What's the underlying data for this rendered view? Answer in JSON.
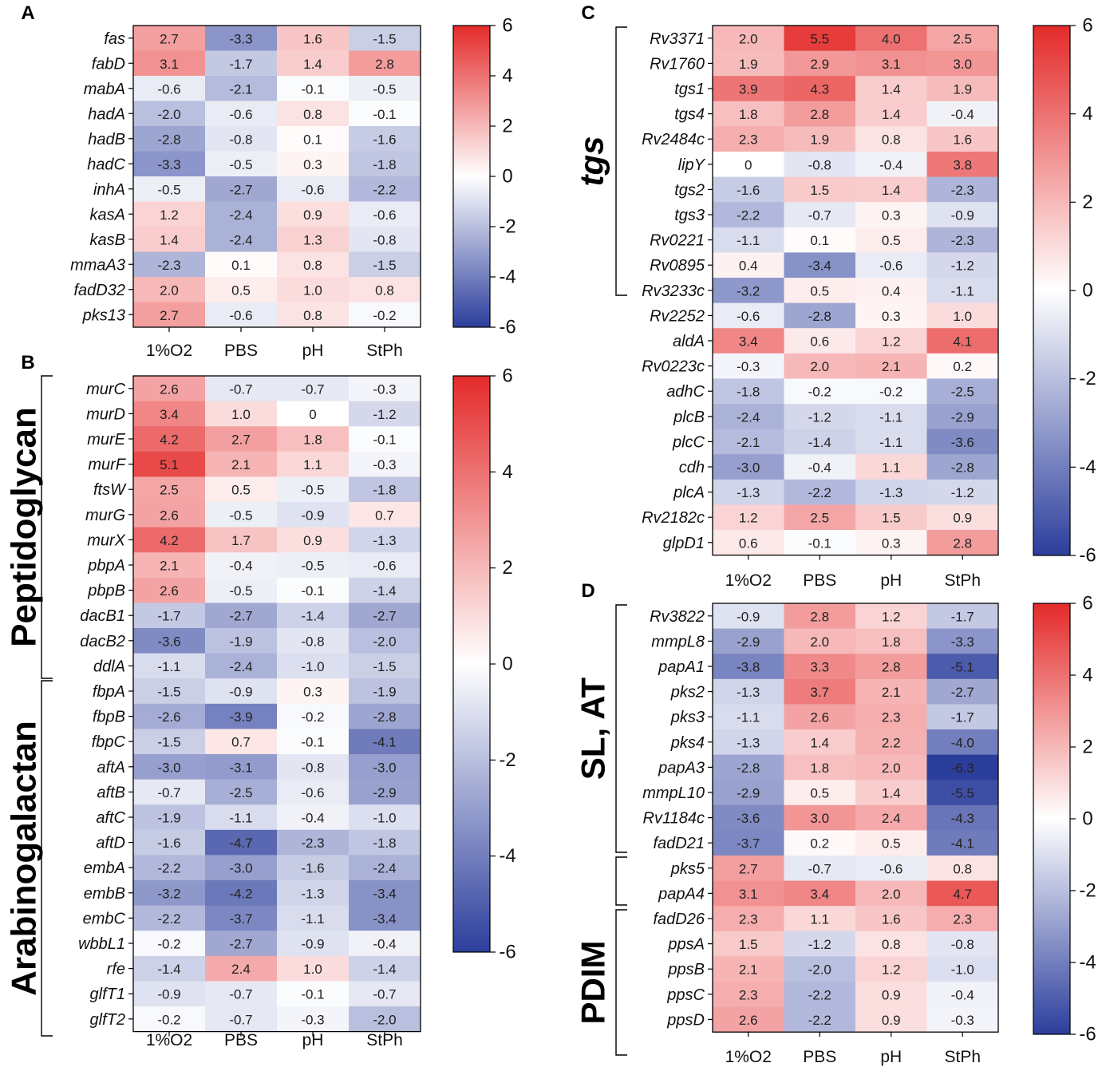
{
  "figure": {
    "colorscale": {
      "min": -6,
      "max": 6,
      "low_color": "#2c3e9c",
      "mid_color": "#ffffff",
      "high_color": "#e42a2a"
    }
  },
  "chart_data": [
    {
      "panel": "A",
      "type": "heatmap",
      "columns": [
        "1%O2",
        "PBS",
        "pH",
        "StPh"
      ],
      "rows": [
        "fas",
        "fabD",
        "mabA",
        "hadA",
        "hadB",
        "hadC",
        "inhA",
        "kasA",
        "kasB",
        "mmaA3",
        "fadD32",
        "pks13"
      ],
      "values": [
        [
          2.7,
          -3.3,
          1.6,
          -1.5
        ],
        [
          3.1,
          -1.7,
          1.4,
          2.8
        ],
        [
          -0.6,
          -2.1,
          -0.1,
          -0.5
        ],
        [
          -2.0,
          -0.6,
          0.8,
          -0.1
        ],
        [
          -2.8,
          -0.8,
          0.1,
          -1.6
        ],
        [
          -3.3,
          -0.5,
          0.3,
          -1.8
        ],
        [
          -0.5,
          -2.7,
          -0.6,
          -2.2
        ],
        [
          1.2,
          -2.4,
          0.9,
          -0.6
        ],
        [
          1.4,
          -2.4,
          1.3,
          -0.8
        ],
        [
          -2.3,
          0.1,
          0.8,
          -1.5
        ],
        [
          2.0,
          0.5,
          1.0,
          0.8
        ],
        [
          2.7,
          -0.6,
          0.8,
          -0.2
        ]
      ],
      "value_labels": [
        [
          "2.7",
          "-3.3",
          "1.6",
          "-1.5"
        ],
        [
          "3.1",
          "-1.7",
          "1.4",
          "2.8"
        ],
        [
          "-0.6",
          "-2.1",
          "-0.1",
          "-0.5"
        ],
        [
          "-2.0",
          "-0.6",
          "0.8",
          "-0.1"
        ],
        [
          "-2.8",
          "-0.8",
          "0.1",
          "-1.6"
        ],
        [
          "-3.3",
          "-0.5",
          "0.3",
          "-1.8"
        ],
        [
          "-0.5",
          "-2.7",
          "-0.6",
          "-2.2"
        ],
        [
          "1.2",
          "-2.4",
          "0.9",
          "-0.6"
        ],
        [
          "1.4",
          "-2.4",
          "1.3",
          "-0.8"
        ],
        [
          "-2.3",
          "0.1",
          "0.8",
          "-1.5"
        ],
        [
          "2.0",
          "0.5",
          "1.0",
          "0.8"
        ],
        [
          "2.7",
          "-0.6",
          "0.8",
          "-0.2"
        ]
      ],
      "groups": [],
      "colorbar_ticks": [
        "6",
        "4",
        "2",
        "0",
        "-2",
        "-4",
        "-6"
      ]
    },
    {
      "panel": "B",
      "type": "heatmap",
      "columns": [
        "1%O2",
        "PBS",
        "pH",
        "StPh"
      ],
      "rows": [
        "murC",
        "murD",
        "murE",
        "murF",
        "ftsW",
        "murG",
        "murX",
        "pbpA",
        "pbpB",
        "dacB1",
        "dacB2",
        "ddlA",
        "fbpA",
        "fbpB",
        "fbpC",
        "aftA",
        "aftB",
        "aftC",
        "aftD",
        "embA",
        "embB",
        "embC",
        "wbbL1",
        "rfe",
        "glfT1",
        "glfT2"
      ],
      "values": [
        [
          2.6,
          -0.7,
          -0.7,
          -0.3
        ],
        [
          3.4,
          1.0,
          0,
          -1.2
        ],
        [
          4.2,
          2.7,
          1.8,
          -0.1
        ],
        [
          5.1,
          2.1,
          1.1,
          -0.3
        ],
        [
          2.5,
          0.5,
          -0.5,
          -1.8
        ],
        [
          2.6,
          -0.5,
          -0.9,
          0.7
        ],
        [
          4.2,
          1.7,
          0.9,
          -1.3
        ],
        [
          2.1,
          -0.4,
          -0.5,
          -0.6
        ],
        [
          2.6,
          -0.5,
          -0.1,
          -1.4
        ],
        [
          -1.7,
          -2.7,
          -1.4,
          -2.7
        ],
        [
          -3.6,
          -1.9,
          -0.8,
          -2.0
        ],
        [
          -1.1,
          -2.4,
          -1.0,
          -1.5
        ],
        [
          -1.5,
          -0.9,
          0.3,
          -1.9
        ],
        [
          -2.6,
          -3.9,
          -0.2,
          -2.8
        ],
        [
          -1.5,
          0.7,
          -0.1,
          -4.1
        ],
        [
          -3.0,
          -3.1,
          -0.8,
          -3.0
        ],
        [
          -0.7,
          -2.5,
          -0.6,
          -2.9
        ],
        [
          -1.9,
          -1.1,
          -0.4,
          -1.0
        ],
        [
          -1.6,
          -4.7,
          -2.3,
          -1.8
        ],
        [
          -2.2,
          -3.0,
          -1.6,
          -2.4
        ],
        [
          -3.2,
          -4.2,
          -1.3,
          -3.4
        ],
        [
          -2.2,
          -3.7,
          -1.1,
          -3.4
        ],
        [
          -0.2,
          -2.7,
          -0.9,
          -0.4
        ],
        [
          -1.4,
          2.4,
          1.0,
          -1.4
        ],
        [
          -0.9,
          -0.7,
          -0.1,
          -0.7
        ],
        [
          -0.2,
          -0.7,
          -0.3,
          -2.0
        ]
      ],
      "value_labels": [
        [
          "2.6",
          "-0.7",
          "-0.7",
          "-0.3"
        ],
        [
          "3.4",
          "1.0",
          "0",
          "-1.2"
        ],
        [
          "4.2",
          "2.7",
          "1.8",
          "-0.1"
        ],
        [
          "5.1",
          "2.1",
          "1.1",
          "-0.3"
        ],
        [
          "2.5",
          "0.5",
          "-0.5",
          "-1.8"
        ],
        [
          "2.6",
          "-0.5",
          "-0.9",
          "0.7"
        ],
        [
          "4.2",
          "1.7",
          "0.9",
          "-1.3"
        ],
        [
          "2.1",
          "-0.4",
          "-0.5",
          "-0.6"
        ],
        [
          "2.6",
          "-0.5",
          "-0.1",
          "-1.4"
        ],
        [
          "-1.7",
          "-2.7",
          "-1.4",
          "-2.7"
        ],
        [
          "-3.6",
          "-1.9",
          "-0.8",
          "-2.0"
        ],
        [
          "-1.1",
          "-2.4",
          "-1.0",
          "-1.5"
        ],
        [
          "-1.5",
          "-0.9",
          "0.3",
          "-1.9"
        ],
        [
          "-2.6",
          "-3.9",
          "-0.2",
          "-2.8"
        ],
        [
          "-1.5",
          "0.7",
          "-0.1",
          "-4.1"
        ],
        [
          "-3.0",
          "-3.1",
          "-0.8",
          "-3.0"
        ],
        [
          "-0.7",
          "-2.5",
          "-0.6",
          "-2.9"
        ],
        [
          "-1.9",
          "-1.1",
          "-0.4",
          "-1.0"
        ],
        [
          "-1.6",
          "-4.7",
          "-2.3",
          "-1.8"
        ],
        [
          "-2.2",
          "-3.0",
          "-1.6",
          "-2.4"
        ],
        [
          "-3.2",
          "-4.2",
          "-1.3",
          "-3.4"
        ],
        [
          "-2.2",
          "-3.7",
          "-1.1",
          "-3.4"
        ],
        [
          "-0.2",
          "-2.7",
          "-0.9",
          "-0.4"
        ],
        [
          "-1.4",
          "2.4",
          "1.0",
          "-1.4"
        ],
        [
          "-0.9",
          "-0.7",
          "-0.1",
          "-0.7"
        ],
        [
          "-0.2",
          "-0.7",
          "-0.3",
          "-2.0"
        ]
      ],
      "groups": [
        {
          "label": "Peptidoglycan",
          "first_row": 0,
          "last_row": 11
        },
        {
          "label": "Arabinogalactan",
          "first_row": 12,
          "last_row": 25
        }
      ],
      "colorbar_ticks": [
        "6",
        "4",
        "2",
        "0",
        "-2",
        "-4",
        "-6"
      ]
    },
    {
      "panel": "C",
      "type": "heatmap",
      "columns": [
        "1%O2",
        "PBS",
        "pH",
        "StPh"
      ],
      "rows": [
        "Rv3371",
        "Rv1760",
        "tgs1",
        "tgs4",
        "Rv2484c",
        "lipY",
        "tgs2",
        "tgs3",
        "Rv0221",
        "Rv0895",
        "Rv3233c",
        "Rv2252",
        "aldA",
        "Rv0223c",
        "adhC",
        "plcB",
        "plcC",
        "cdh",
        "plcA",
        "Rv2182c",
        "glpD1"
      ],
      "values": [
        [
          2.0,
          5.5,
          4.0,
          2.5
        ],
        [
          1.9,
          2.9,
          3.1,
          3.0
        ],
        [
          3.9,
          4.3,
          1.4,
          1.9
        ],
        [
          1.8,
          2.8,
          1.4,
          -0.4
        ],
        [
          2.3,
          1.9,
          0.8,
          1.6
        ],
        [
          0,
          -0.8,
          -0.4,
          3.8
        ],
        [
          -1.6,
          1.5,
          1.4,
          -2.3
        ],
        [
          -2.2,
          -0.7,
          0.3,
          -0.9
        ],
        [
          -1.1,
          0.1,
          0.5,
          -2.3
        ],
        [
          0.4,
          -3.4,
          -0.6,
          -1.2
        ],
        [
          -3.2,
          0.5,
          0.4,
          -1.1
        ],
        [
          -0.6,
          -2.8,
          0.3,
          1.0
        ],
        [
          3.4,
          0.6,
          1.2,
          4.1
        ],
        [
          -0.3,
          2.0,
          2.1,
          0.2
        ],
        [
          -1.8,
          -0.2,
          -0.2,
          -2.5
        ],
        [
          -2.4,
          -1.2,
          -1.1,
          -2.9
        ],
        [
          -2.1,
          -1.4,
          -1.1,
          -3.6
        ],
        [
          -3.0,
          -0.4,
          1.1,
          -2.8
        ],
        [
          -1.3,
          -2.2,
          -1.3,
          -1.2
        ],
        [
          1.2,
          2.5,
          1.5,
          0.9
        ],
        [
          0.6,
          -0.1,
          0.3,
          2.8
        ]
      ],
      "value_labels": [
        [
          "2.0",
          "5.5",
          "4.0",
          "2.5"
        ],
        [
          "1.9",
          "2.9",
          "3.1",
          "3.0"
        ],
        [
          "3.9",
          "4.3",
          "1.4",
          "1.9"
        ],
        [
          "1.8",
          "2.8",
          "1.4",
          "-0.4"
        ],
        [
          "2.3",
          "1.9",
          "0.8",
          "1.6"
        ],
        [
          "0",
          "-0.8",
          "-0.4",
          "3.8"
        ],
        [
          "-1.6",
          "1.5",
          "1.4",
          "-2.3"
        ],
        [
          "-2.2",
          "-0.7",
          "0.3",
          "-0.9"
        ],
        [
          "-1.1",
          "0.1",
          "0.5",
          "-2.3"
        ],
        [
          "0.4",
          "-3.4",
          "-0.6",
          "-1.2"
        ],
        [
          "-3.2",
          "0.5",
          "0.4",
          "-1.1"
        ],
        [
          "-0.6",
          "-2.8",
          "0.3",
          "1.0"
        ],
        [
          "3.4",
          "0.6",
          "1.2",
          "4.1"
        ],
        [
          "-0.3",
          "2.0",
          "2.1",
          "0.2"
        ],
        [
          "-1.8",
          "-0.2",
          "-0.2",
          "-2.5"
        ],
        [
          "-2.4",
          "-1.2",
          "-1.1",
          "-2.9"
        ],
        [
          "-2.1",
          "-1.4",
          "-1.1",
          "-3.6"
        ],
        [
          "-3.0",
          "-0.4",
          "1.1",
          "-2.8"
        ],
        [
          "-1.3",
          "-2.2",
          "-1.3",
          "-1.2"
        ],
        [
          "1.2",
          "2.5",
          "1.5",
          "0.9"
        ],
        [
          "0.6",
          "-0.1",
          "0.3",
          "2.8"
        ]
      ],
      "groups": [
        {
          "label": "tgs",
          "first_row": 0,
          "last_row": 10
        }
      ],
      "colorbar_ticks": [
        "6",
        "4",
        "2",
        "0",
        "-2",
        "-4",
        "-6"
      ]
    },
    {
      "panel": "D",
      "type": "heatmap",
      "columns": [
        "1%O2",
        "PBS",
        "pH",
        "StPh"
      ],
      "rows": [
        "Rv3822",
        "mmpL8",
        "papA1",
        "pks2",
        "pks3",
        "pks4",
        "papA3",
        "mmpL10",
        "Rv1184c",
        "fadD21",
        "pks5",
        "papA4",
        "fadD26",
        "ppsA",
        "ppsB",
        "ppsC",
        "ppsD"
      ],
      "values": [
        [
          -0.9,
          2.8,
          1.2,
          -1.7
        ],
        [
          -2.9,
          2.0,
          1.8,
          -3.3
        ],
        [
          -3.8,
          3.3,
          2.8,
          -5.1
        ],
        [
          -1.3,
          3.7,
          2.1,
          -2.7
        ],
        [
          -1.1,
          2.6,
          2.3,
          -1.7
        ],
        [
          -1.3,
          1.4,
          2.2,
          -4.0
        ],
        [
          -2.8,
          1.8,
          2.0,
          -6.3
        ],
        [
          -2.9,
          0.5,
          1.4,
          -5.5
        ],
        [
          -3.6,
          3.0,
          2.4,
          -4.3
        ],
        [
          -3.7,
          0.2,
          0.5,
          -4.1
        ],
        [
          2.7,
          -0.7,
          -0.6,
          0.8
        ],
        [
          3.1,
          3.4,
          2.0,
          4.7
        ],
        [
          2.3,
          1.1,
          1.6,
          2.3
        ],
        [
          1.5,
          -1.2,
          0.8,
          -0.8
        ],
        [
          2.1,
          -2.0,
          1.2,
          -1.0
        ],
        [
          2.3,
          -2.2,
          0.9,
          -0.4
        ],
        [
          2.6,
          -2.2,
          0.9,
          -0.3
        ]
      ],
      "value_labels": [
        [
          "-0.9",
          "2.8",
          "1.2",
          "-1.7"
        ],
        [
          "-2.9",
          "2.0",
          "1.8",
          "-3.3"
        ],
        [
          "-3.8",
          "3.3",
          "2.8",
          "-5.1"
        ],
        [
          "-1.3",
          "3.7",
          "2.1",
          "-2.7"
        ],
        [
          "-1.1",
          "2.6",
          "2.3",
          "-1.7"
        ],
        [
          "-1.3",
          "1.4",
          "2.2",
          "-4.0"
        ],
        [
          "-2.8",
          "1.8",
          "2.0",
          "-6.3"
        ],
        [
          "-2.9",
          "0.5",
          "1.4",
          "-5.5"
        ],
        [
          "-3.6",
          "3.0",
          "2.4",
          "-4.3"
        ],
        [
          "-3.7",
          "0.2",
          "0.5",
          "-4.1"
        ],
        [
          "2.7",
          "-0.7",
          "-0.6",
          "0.8"
        ],
        [
          "3.1",
          "3.4",
          "2.0",
          "4.7"
        ],
        [
          "2.3",
          "1.1",
          "1.6",
          "2.3"
        ],
        [
          "1.5",
          "-1.2",
          "0.8",
          "-0.8"
        ],
        [
          "2.1",
          "-2.0",
          "1.2",
          "-1.0"
        ],
        [
          "2.3",
          "-2.2",
          "0.9",
          "-0.4"
        ],
        [
          "2.6",
          "-2.2",
          "0.9",
          "-0.3"
        ]
      ],
      "groups": [
        {
          "label": "SL, AT",
          "first_row": 0,
          "last_row": 9
        },
        {
          "label": "",
          "first_row": 10,
          "last_row": 11
        },
        {
          "label": "PDIM",
          "first_row": 12,
          "last_row": 16
        }
      ],
      "colorbar_ticks": [
        "6",
        "4",
        "2",
        "0",
        "-2",
        "-4",
        "-6"
      ]
    }
  ]
}
